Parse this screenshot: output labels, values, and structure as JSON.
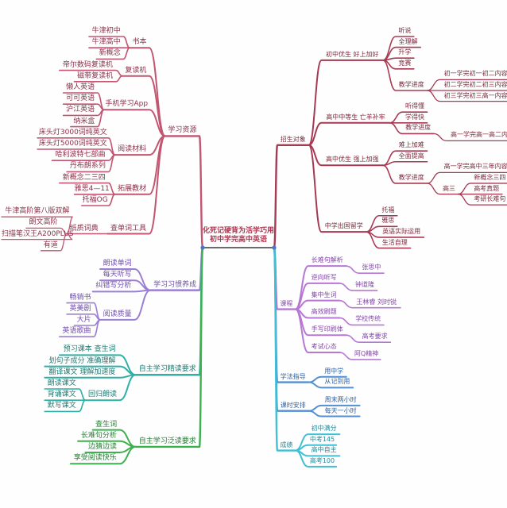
{
  "app": {
    "background": "#fefefe"
  },
  "mindmap": {
    "center": {
      "line1": "化死记硬背为活学巧用",
      "line2": "初中学完高中英语",
      "text_color": "#b03550",
      "underline_color": "#6b6b6b",
      "dot_color": "#4a77c8"
    },
    "branches": [
      {
        "label": "学习资源",
        "side": "left",
        "color": "#c25570",
        "text_color": "#8a3048",
        "children": [
          {
            "t": "书本",
            "c": [
              {
                "t": "牛津初中"
              },
              {
                "t": "牛津高中"
              },
              {
                "t": "新概念"
              }
            ]
          },
          {
            "t": "复读机",
            "c": [
              {
                "t": "帝尔数码复读机"
              },
              {
                "t": "磁带复读机"
              }
            ]
          },
          {
            "t": "手机学习App",
            "c": [
              {
                "t": "懒人英语"
              },
              {
                "t": "可可英语"
              },
              {
                "t": "沪江英语"
              },
              {
                "t": "纳米盒"
              }
            ]
          },
          {
            "t": "阅读材料",
            "c": [
              {
                "t": "床头灯3000词纯英文"
              },
              {
                "t": "床头灯5000词纯英文"
              },
              {
                "t": "哈利波特七部曲"
              },
              {
                "t": "丹布朗系列"
              }
            ]
          },
          {
            "t": "拓展教材",
            "c": [
              {
                "t": "新概念二三四"
              },
              {
                "t": "雅思4—11"
              },
              {
                "t": "托福OG"
              }
            ]
          },
          {
            "t": "查单词工具",
            "c": [
              {
                "t": "纸质词典",
                "c": [
                  {
                    "t": "牛津高阶第八版双解"
                  },
                  {
                    "t": "朗文高阶"
                  },
                  {
                    "t": "扫描笔汉王A200PLUS"
                  },
                  {
                    "t": "有道"
                  }
                ]
              }
            ]
          }
        ]
      },
      {
        "label": "学习习惯养成",
        "side": "left",
        "color": "#9b7fd4",
        "text_color": "#6f4fa8",
        "children": [
          {
            "t": "朗读单词"
          },
          {
            "t": "每天听写"
          },
          {
            "t": "纠错写分析"
          },
          {
            "t": "阅读质量",
            "c": [
              {
                "t": "畅销书"
              },
              {
                "t": "英美剧"
              },
              {
                "t": "大片"
              },
              {
                "t": "英语歌曲"
              }
            ]
          }
        ]
      },
      {
        "label": "自主学习精读要求",
        "side": "left",
        "color": "#2fb0a6",
        "text_color": "#1d7a72",
        "children": [
          {
            "t": "预习课本 查生词"
          },
          {
            "t": "划句子成分 准确理解"
          },
          {
            "t": "翻译课文 理解加速度"
          },
          {
            "t": "回归朗读",
            "c": [
              {
                "t": "朗读课文"
              },
              {
                "t": "背诵课文"
              },
              {
                "t": "默写课文"
              }
            ]
          }
        ]
      },
      {
        "label": "自主学习泛读要求",
        "side": "left",
        "color": "#3cb14e",
        "text_color": "#247a33",
        "children": [
          {
            "t": "查生词"
          },
          {
            "t": "长难句分析"
          },
          {
            "t": "边猜边读"
          },
          {
            "t": "享受阅读快乐"
          }
        ]
      },
      {
        "label": "招生对象",
        "side": "right",
        "color": "#a63a52",
        "text_color": "#7e2a3c",
        "children": [
          {
            "t": "初中优生 好上加好",
            "c": [
              {
                "t": "听说"
              },
              {
                "t": "全理解"
              },
              {
                "t": "升学"
              },
              {
                "t": "竞赛"
              },
              {
                "t": "教学进度",
                "c": [
                  {
                    "t": "初一学完初一初二内容"
                  },
                  {
                    "t": "初二学完初二初三内容"
                  },
                  {
                    "t": "初三学完初三高一内容"
                  }
                ]
              }
            ]
          },
          {
            "t": "高中中等生 亡羊补牢",
            "c": [
              {
                "t": "听得懂"
              },
              {
                "t": "学得快"
              },
              {
                "t": "教学进度",
                "c": [
                  {
                    "t": "高一学完高一高二内容"
                  }
                ]
              }
            ]
          },
          {
            "t": "高中优生 强上加强",
            "c": [
              {
                "t": "难上加难"
              },
              {
                "t": "全面提高"
              },
              {
                "t": "教学进度",
                "c": [
                  {
                    "t": "高一学完高中三年内容"
                  },
                  {
                    "t": "高三",
                    "c": [
                      {
                        "t": "新概念三四"
                      },
                      {
                        "t": "高考真题"
                      },
                      {
                        "t": "考研长难句"
                      }
                    ]
                  }
                ]
              }
            ]
          },
          {
            "t": "中学出国留学",
            "c": [
              {
                "t": "托福"
              },
              {
                "t": "雅思"
              },
              {
                "t": "英语实际运用"
              },
              {
                "t": "生活自理"
              }
            ]
          }
        ]
      },
      {
        "label": "课程",
        "side": "right",
        "color": "#b678d4",
        "text_color": "#8347a8",
        "children": [
          {
            "t": "长难句解析",
            "c": [
              {
                "t": "张思中"
              }
            ]
          },
          {
            "t": "逆向听写",
            "c": [
              {
                "t": "钟道隆"
              }
            ]
          },
          {
            "t": "集中生词",
            "c": [
              {
                "t": "王林睿 刘时锐"
              }
            ]
          },
          {
            "t": "高效刷题",
            "c": [
              {
                "t": "学校传统"
              }
            ]
          },
          {
            "t": "手写印刷体",
            "c": [
              {
                "t": "高考要求"
              }
            ]
          },
          {
            "t": "考试心态",
            "c": [
              {
                "t": "阿Q精神"
              }
            ]
          }
        ]
      },
      {
        "label": "学法指导",
        "side": "right",
        "color": "#548fd2",
        "text_color": "#2f62a8",
        "children": [
          {
            "t": "用中学"
          },
          {
            "t": "从记到用"
          }
        ]
      },
      {
        "label": "课时安排",
        "side": "right",
        "color": "#548fd2",
        "text_color": "#2f62a8",
        "children": [
          {
            "t": "周末两小时"
          },
          {
            "t": "每天一小时"
          }
        ]
      },
      {
        "label": "成绩",
        "side": "right",
        "color": "#3fc0d4",
        "text_color": "#1f8a9e",
        "children": [
          {
            "t": "初中满分"
          },
          {
            "t": "中考145"
          },
          {
            "t": "高中自主"
          },
          {
            "t": "高考100"
          }
        ]
      }
    ]
  }
}
